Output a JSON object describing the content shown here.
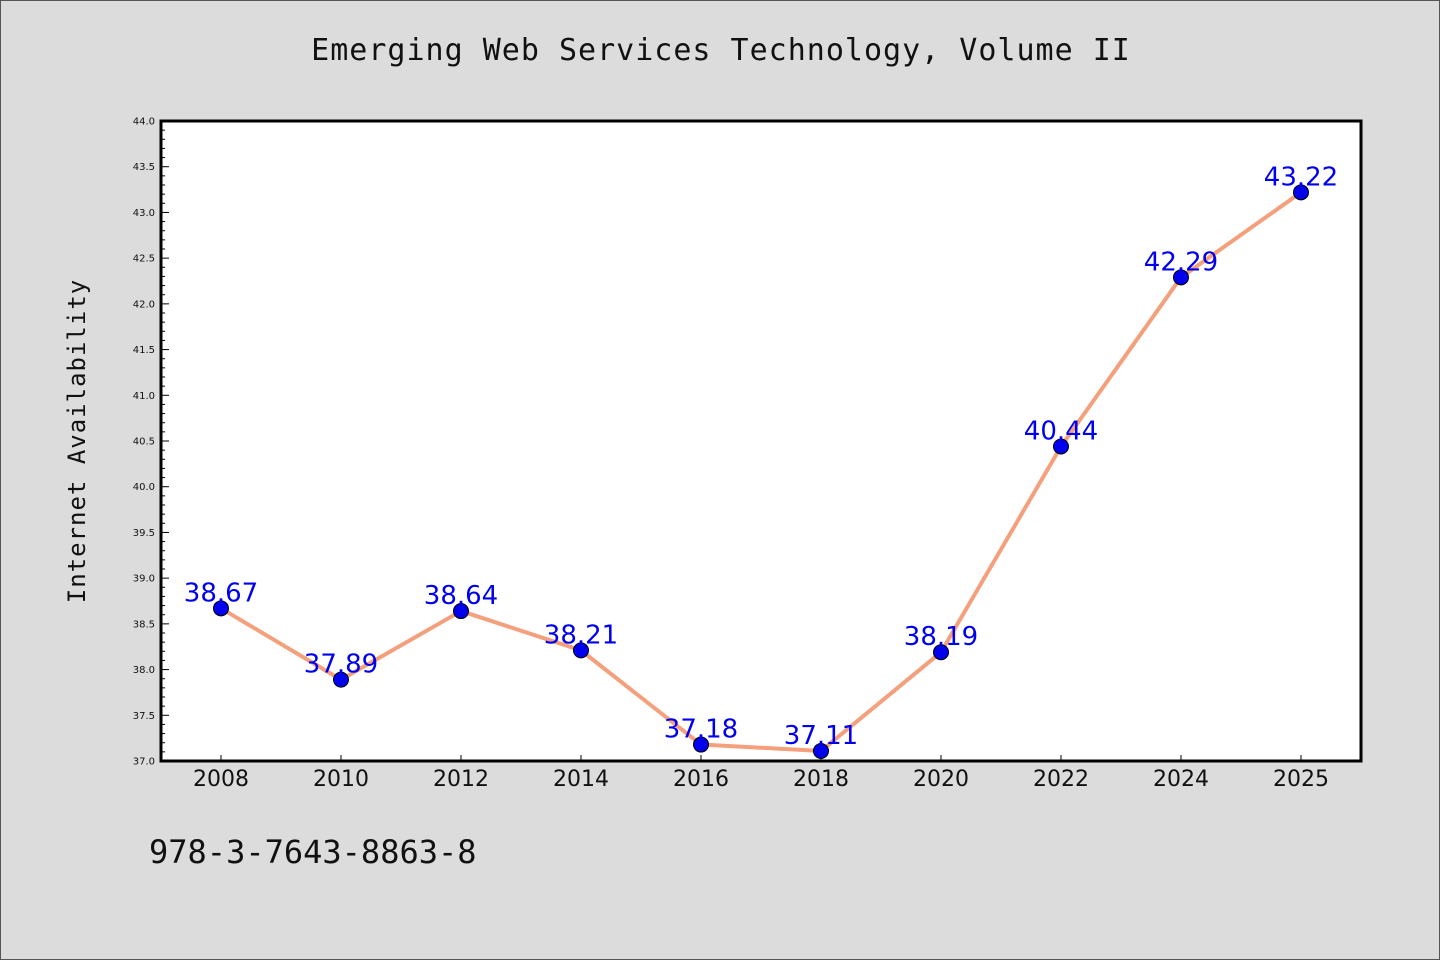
{
  "chart_data": {
    "type": "line",
    "title": "Emerging Web Services Technology, Volume II",
    "xlabel": "",
    "ylabel": "Internet Availability",
    "categories": [
      "2008",
      "2010",
      "2012",
      "2014",
      "2016",
      "2018",
      "2020",
      "2022",
      "2024",
      "2025"
    ],
    "series": [
      {
        "values": [
          38.67,
          37.89,
          38.64,
          38.21,
          37.18,
          37.11,
          38.19,
          40.44,
          42.29,
          43.22
        ],
        "line_color": "#f4a07c",
        "marker_color": "#0000ee"
      }
    ],
    "data_labels": [
      "38.67",
      "37.89",
      "38.64",
      "38.21",
      "37.18",
      "37.11",
      "38.19",
      "40.44",
      "42.29",
      "43.22"
    ],
    "ylim": [
      37.0,
      44.0
    ],
    "yticks": [
      "37.0",
      "37.5",
      "38.0",
      "38.5",
      "39.0",
      "39.5",
      "40.0",
      "40.5",
      "41.0",
      "41.5",
      "42.0",
      "42.5",
      "43.0",
      "43.5",
      "44.0"
    ],
    "grid": false,
    "legend": "none"
  },
  "footer": {
    "isbn": "978-3-7643-8863-8"
  }
}
